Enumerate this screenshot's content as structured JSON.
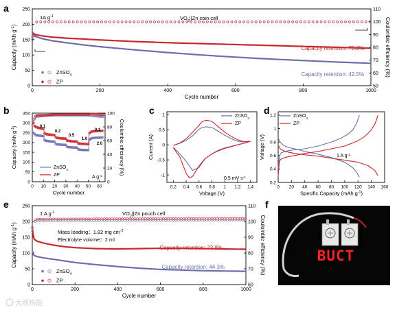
{
  "watermark": "大观热能",
  "panels": {
    "a": {
      "letter": "a",
      "annotation_rate": "1A g",
      "annotation_rate_sup": "-1",
      "cell_label": "VO",
      "cell_label_sub": "2",
      "cell_label_rest": "||Zn coin cell",
      "legend": [
        {
          "label": "ZnSO",
          "sub": "4"
        },
        {
          "label": "ZP",
          "sub": ""
        }
      ],
      "retention_labels": [
        "Capacity retention: 73.3%",
        "Capacity retention: 42.5%"
      ]
    },
    "b": {
      "letter": "b",
      "rate_labels": [
        "0.1",
        "0.2",
        "0.5",
        "1.0",
        "2.0",
        "0.1"
      ],
      "unit_label": "A g",
      "unit_sup": "-1",
      "legend": [
        {
          "label": "ZnSO",
          "sub": "4"
        },
        {
          "label": "ZP",
          "sub": ""
        }
      ]
    },
    "c": {
      "letter": "c",
      "scan_rate": "0.5 mV s",
      "scan_rate_sup": "-1",
      "legend": [
        {
          "label": "ZnSO",
          "sub": "4"
        },
        {
          "label": "ZP",
          "sub": ""
        }
      ]
    },
    "d": {
      "letter": "d",
      "rate": "1 A g",
      "rate_sup": "-1",
      "legend": [
        {
          "label": "ZnSO",
          "sub": "4"
        },
        {
          "label": "ZP",
          "sub": ""
        }
      ]
    },
    "e": {
      "letter": "e",
      "annotation_rate": "1 A g",
      "annotation_rate_sup": "-1",
      "cell_label": "VO",
      "cell_label_sub": "2",
      "cell_label_rest": "||Zn pouch cell",
      "mass_loading": "Mass loading：1.82 mg cm",
      "mass_loading_sup": "-2",
      "electrolyte_volume": "Electrolyte volume：2 ml",
      "legend": [
        {
          "label": "ZnSO",
          "sub": "4"
        },
        {
          "label": "ZP",
          "sub": ""
        }
      ],
      "retention_labels": [
        "Capacity retention: 73.8%",
        "Capacity retention: 44.3%"
      ]
    },
    "f": {
      "letter": "f",
      "led_text": "BUCT"
    }
  },
  "colors": {
    "znso4": "#6b6eae",
    "zp": "#c8262c",
    "background_photo": "#050505",
    "led": "#ff2020"
  },
  "chart_data": [
    {
      "id": "a",
      "type": "line",
      "xlabel": "Cycle number",
      "ylabel": "Capacity (mAh g",
      "ylabel_sup": "-1",
      "ylabel_end": ")",
      "y2label": "Coulombic efficiency (%)",
      "xlim": [
        0,
        1000
      ],
      "ylim": [
        0,
        250
      ],
      "y2lim": [
        50,
        110
      ],
      "xticks": [
        0,
        200,
        400,
        600,
        800,
        1000
      ],
      "yticks": [
        0,
        50,
        100,
        150,
        200,
        250
      ],
      "y2ticks": [
        50,
        60,
        70,
        80,
        90,
        100,
        110
      ],
      "series": [
        {
          "name": "ZnSO4",
          "axis": "left",
          "color": "#6b6eae",
          "x": [
            1,
            5,
            10,
            30,
            60,
            100,
            150,
            200,
            300,
            400,
            500,
            600,
            700,
            800,
            900,
            1000
          ],
          "y": [
            170,
            162,
            160,
            153,
            146,
            140,
            133,
            127,
            117,
            108,
            100,
            93,
            87,
            82,
            77,
            73
          ]
        },
        {
          "name": "ZP",
          "axis": "left",
          "color": "#c8262c",
          "x": [
            1,
            5,
            10,
            30,
            60,
            100,
            150,
            200,
            300,
            400,
            500,
            600,
            700,
            800,
            900,
            1000
          ],
          "y": [
            172,
            168,
            166,
            162,
            158,
            155,
            152,
            149,
            144,
            140,
            137,
            134,
            131,
            128,
            125,
            122
          ]
        },
        {
          "name": "ZnSO4",
          "axis": "right",
          "color": "#6b6eae",
          "x": [
            1,
            2,
            3,
            5,
            10,
            20,
            1000
          ],
          "y": [
            86,
            93,
            97,
            99,
            99.6,
            99.8,
            99.9
          ]
        },
        {
          "name": "ZP",
          "axis": "right",
          "color": "#c8262c",
          "x": [
            1,
            2,
            3,
            5,
            10,
            20,
            1000
          ],
          "y": [
            88,
            95,
            98,
            99.5,
            99.8,
            99.9,
            100
          ]
        }
      ]
    },
    {
      "id": "b",
      "type": "line",
      "xlabel": "Cycle number",
      "ylabel": "Capacity (mAh g",
      "ylabel_sup": "-1",
      "ylabel_end": ")",
      "y2label": "Coulombic efficiency (%)",
      "xlim": [
        0,
        65
      ],
      "ylim": [
        0,
        350
      ],
      "y2lim": [
        0,
        100
      ],
      "xticks": [
        0,
        10,
        20,
        30,
        40,
        50,
        60
      ],
      "yticks": [
        0,
        50,
        100,
        150,
        200,
        250,
        300,
        350
      ],
      "y2ticks": [
        0,
        20,
        40,
        60,
        80,
        100
      ],
      "series": [
        {
          "name": "ZnSO4",
          "axis": "left",
          "color": "#6b6eae",
          "x": [
            1,
            2,
            3,
            5,
            8,
            10,
            11,
            13,
            16,
            20,
            21,
            23,
            26,
            30,
            31,
            33,
            36,
            40,
            41,
            43,
            46,
            50,
            51,
            53,
            56,
            60,
            63
          ],
          "y": [
            250,
            243,
            238,
            236,
            234,
            232,
            212,
            208,
            206,
            204,
            192,
            190,
            189,
            188,
            178,
            176,
            175,
            174,
            165,
            163,
            162,
            161,
            215,
            222,
            224,
            225,
            226
          ]
        },
        {
          "name": "ZP",
          "axis": "left",
          "color": "#c8262c",
          "x": [
            1,
            2,
            3,
            5,
            8,
            10,
            11,
            13,
            16,
            20,
            21,
            23,
            26,
            30,
            31,
            33,
            36,
            40,
            41,
            43,
            46,
            50,
            51,
            53,
            56,
            60,
            63
          ],
          "y": [
            300,
            285,
            280,
            276,
            272,
            270,
            246,
            242,
            240,
            238,
            226,
            223,
            221,
            220,
            210,
            208,
            206,
            205,
            196,
            194,
            193,
            192,
            248,
            256,
            258,
            259,
            260
          ]
        },
        {
          "name": "ZnSO4",
          "axis": "right",
          "color": "#6b6eae",
          "x": [
            1,
            3,
            5,
            10,
            20,
            30,
            40,
            50,
            55,
            60,
            63
          ],
          "y": [
            88,
            95,
            95,
            96,
            97,
            97,
            97,
            97,
            96,
            95,
            95
          ]
        },
        {
          "name": "ZP",
          "axis": "right",
          "color": "#c8262c",
          "x": [
            1,
            3,
            5,
            10,
            20,
            30,
            40,
            50,
            55,
            60,
            63
          ],
          "y": [
            90,
            96,
            97,
            97,
            98,
            98,
            98,
            98,
            99,
            98,
            98
          ]
        }
      ]
    },
    {
      "id": "c",
      "type": "line",
      "xlabel": "Voltage (V)",
      "ylabel": "Current (A)",
      "xlim": [
        0.1,
        1.5
      ],
      "ylim": [
        -1.25,
        1.1
      ],
      "xticks": [
        0.2,
        0.4,
        0.6,
        0.8,
        1.0,
        1.2,
        1.4
      ],
      "yticks": [
        -1.0,
        -0.5,
        0.0,
        0.5,
        1.0
      ],
      "series": [
        {
          "name": "ZnSO4",
          "color": "#6b6eae",
          "x": [
            0.2,
            0.3,
            0.4,
            0.5,
            0.58,
            0.62,
            0.7,
            0.8,
            0.9,
            1.0,
            1.1,
            1.2,
            1.3,
            1.4,
            1.3,
            1.2,
            1.1,
            1.0,
            0.9,
            0.8,
            0.7,
            0.6,
            0.5,
            0.4,
            0.3,
            0.2
          ],
          "y": [
            -0.02,
            0.05,
            0.15,
            0.3,
            0.48,
            0.55,
            0.6,
            0.58,
            0.45,
            0.32,
            0.2,
            0.12,
            0.1,
            0.12,
            0.06,
            0.0,
            -0.05,
            -0.1,
            -0.18,
            -0.3,
            -0.45,
            -0.75,
            -0.85,
            -0.55,
            -0.3,
            -0.08
          ]
        },
        {
          "name": "ZP",
          "color": "#c8262c",
          "x": [
            0.2,
            0.3,
            0.4,
            0.5,
            0.58,
            0.65,
            0.72,
            0.8,
            0.9,
            1.0,
            1.1,
            1.2,
            1.3,
            1.4,
            1.3,
            1.2,
            1.1,
            1.0,
            0.9,
            0.8,
            0.7,
            0.6,
            0.5,
            0.45,
            0.4,
            0.3,
            0.2
          ],
          "y": [
            -0.02,
            0.06,
            0.2,
            0.42,
            0.6,
            0.78,
            0.82,
            0.78,
            0.6,
            0.42,
            0.28,
            0.17,
            0.1,
            0.12,
            0.05,
            0.0,
            -0.06,
            -0.12,
            -0.2,
            -0.3,
            -0.45,
            -0.7,
            -1.05,
            -1.1,
            -0.95,
            -0.4,
            -0.1
          ]
        }
      ]
    },
    {
      "id": "d",
      "type": "line",
      "xlabel": "Specific Capacity (mAh g",
      "xlabel_sup": "-1",
      "xlabel_end": ")",
      "ylabel": "Voltage (V)",
      "xlim": [
        0,
        160
      ],
      "ylim": [
        0.2,
        1.25
      ],
      "xticks": [
        0,
        20,
        40,
        60,
        80,
        100,
        120,
        140,
        160
      ],
      "yticks": [
        0.2,
        0.4,
        0.6,
        0.8,
        1.0,
        1.2
      ],
      "series": [
        {
          "name": "ZnSO4",
          "color": "#6b6eae",
          "x": [
            0,
            2,
            5,
            10,
            20,
            40,
            60,
            80,
            95,
            105,
            112,
            118,
            122
          ],
          "y": [
            0.4,
            0.6,
            0.64,
            0.66,
            0.68,
            0.7,
            0.74,
            0.8,
            0.86,
            0.92,
            0.98,
            1.08,
            1.2
          ]
        },
        {
          "name": "ZnSO4",
          "color": "#6b6eae",
          "x": [
            0,
            3,
            8,
            15,
            25,
            40,
            60,
            80,
            100,
            112,
            118,
            122
          ],
          "y": [
            0.86,
            0.8,
            0.75,
            0.72,
            0.7,
            0.66,
            0.62,
            0.57,
            0.5,
            0.42,
            0.35,
            0.28
          ]
        },
        {
          "name": "ZP",
          "color": "#c8262c",
          "x": [
            0,
            2,
            5,
            10,
            20,
            40,
            60,
            80,
            100,
            120,
            130,
            140,
            146,
            150
          ],
          "y": [
            0.3,
            0.52,
            0.55,
            0.57,
            0.59,
            0.63,
            0.66,
            0.7,
            0.74,
            0.82,
            0.88,
            0.98,
            1.08,
            1.2
          ]
        },
        {
          "name": "ZP",
          "color": "#c8262c",
          "x": [
            0,
            3,
            8,
            15,
            25,
            40,
            60,
            80,
            100,
            120,
            135,
            145,
            150
          ],
          "y": [
            0.75,
            0.7,
            0.67,
            0.65,
            0.63,
            0.61,
            0.59,
            0.56,
            0.53,
            0.5,
            0.45,
            0.38,
            0.3
          ]
        }
      ]
    },
    {
      "id": "e",
      "type": "line",
      "xlabel": "Cycle number",
      "ylabel": "Capacity (mAh g",
      "ylabel_sup": "-1",
      "ylabel_end": ")",
      "y2label": "Coulombic efficiency (%)",
      "xlim": [
        0,
        1000
      ],
      "ylim": [
        0,
        250
      ],
      "y2lim": [
        60,
        110
      ],
      "xticks": [
        0,
        200,
        400,
        600,
        800,
        1000
      ],
      "yticks": [
        0,
        50,
        100,
        150,
        200,
        250
      ],
      "y2ticks": [
        60,
        70,
        80,
        90,
        100,
        110
      ],
      "series": [
        {
          "name": "ZnSO4",
          "axis": "left",
          "color": "#6b6eae",
          "x": [
            1,
            5,
            10,
            20,
            50,
            100,
            150,
            200,
            300,
            400,
            500,
            600,
            700,
            800,
            900,
            1000
          ],
          "y": [
            105,
            95,
            92,
            89,
            85,
            80,
            75,
            70,
            63,
            57,
            52,
            48,
            46,
            44,
            43,
            42
          ]
        },
        {
          "name": "ZP",
          "axis": "left",
          "color": "#c8262c",
          "x": [
            1,
            5,
            10,
            20,
            50,
            100,
            150,
            200,
            300,
            400,
            500,
            600,
            700,
            800,
            900,
            1000
          ],
          "y": [
            170,
            150,
            143,
            138,
            132,
            125,
            120,
            117,
            114,
            113,
            114,
            115,
            115,
            114,
            113,
            112
          ]
        },
        {
          "name": "ZnSO4",
          "axis": "right",
          "color": "#6b6eae",
          "x": [
            1,
            2,
            5,
            20,
            1000
          ],
          "y": [
            94,
            98,
            99.5,
            100.5,
            101
          ]
        },
        {
          "name": "ZP",
          "axis": "right",
          "color": "#c8262c",
          "x": [
            1,
            2,
            5,
            20,
            1000
          ],
          "y": [
            96,
            99,
            100.5,
            101.5,
            102
          ]
        }
      ]
    }
  ]
}
